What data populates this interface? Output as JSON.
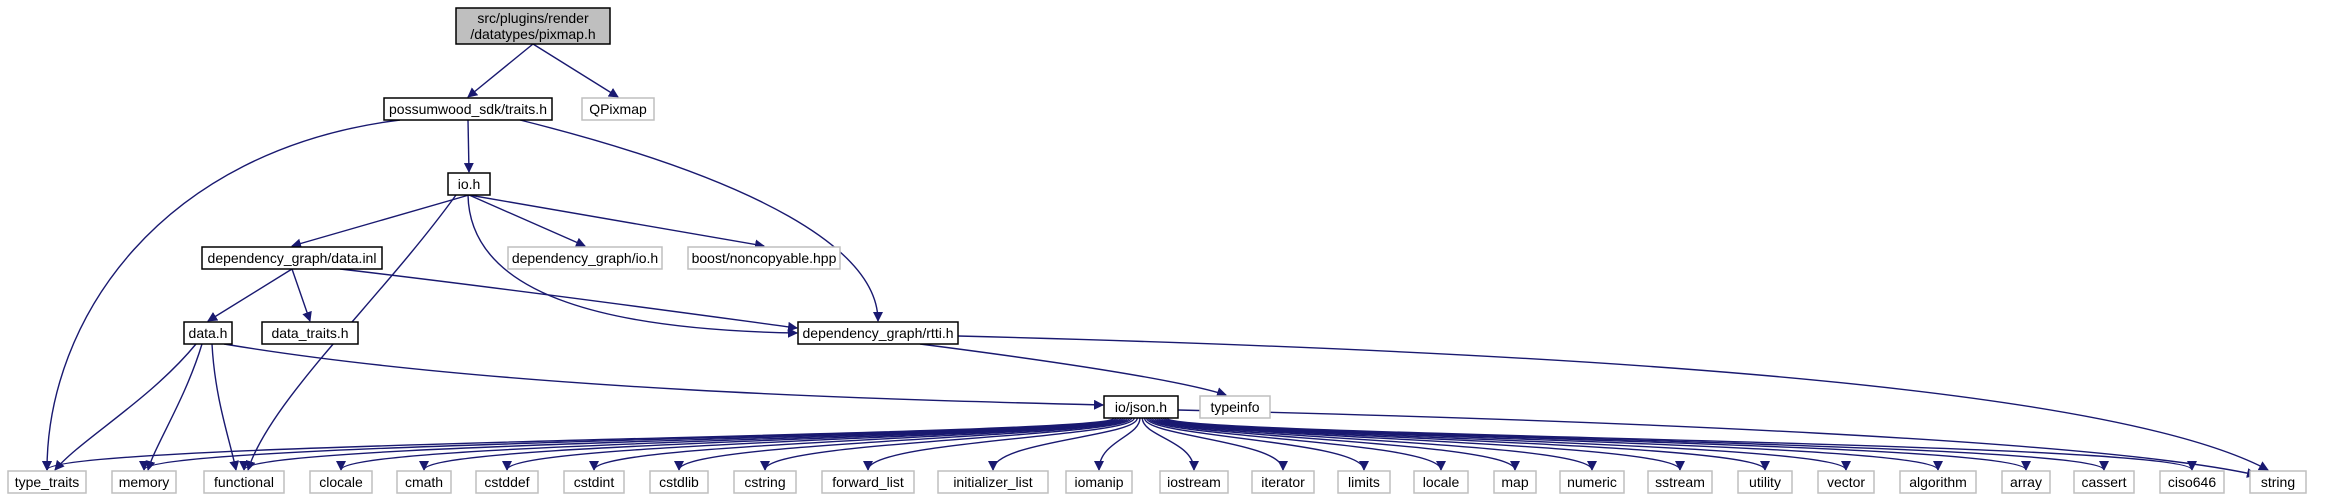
{
  "colors": {
    "edge": "#191970",
    "node_border_documented": "#000000",
    "node_border_external": "#bfbfbf",
    "node_fill_current": "#bfbfbf",
    "node_fill": "#ffffff"
  },
  "nodes": [
    {
      "id": "pixmap",
      "lines": [
        "src/plugins/render",
        "/datatypes/pixmap.h"
      ],
      "kind": "current"
    },
    {
      "id": "traits",
      "lines": [
        "possumwood_sdk/traits.h"
      ],
      "kind": "documented"
    },
    {
      "id": "qpixmap",
      "lines": [
        "QPixmap"
      ],
      "kind": "external"
    },
    {
      "id": "io",
      "lines": [
        "io.h"
      ],
      "kind": "documented"
    },
    {
      "id": "data_inl",
      "lines": [
        "dependency_graph/data.inl"
      ],
      "kind": "documented"
    },
    {
      "id": "dg_io",
      "lines": [
        "dependency_graph/io.h"
      ],
      "kind": "external"
    },
    {
      "id": "noncopyable",
      "lines": [
        "boost/noncopyable.hpp"
      ],
      "kind": "external"
    },
    {
      "id": "data_h",
      "lines": [
        "data.h"
      ],
      "kind": "documented"
    },
    {
      "id": "data_traits",
      "lines": [
        "data_traits.h"
      ],
      "kind": "documented"
    },
    {
      "id": "rtti",
      "lines": [
        "dependency_graph/rtti.h"
      ],
      "kind": "documented"
    },
    {
      "id": "json",
      "lines": [
        "io/json.h"
      ],
      "kind": "documented"
    },
    {
      "id": "typeinfo",
      "lines": [
        "typeinfo"
      ],
      "kind": "external"
    },
    {
      "id": "type_traits",
      "lines": [
        "type_traits"
      ],
      "kind": "external"
    },
    {
      "id": "memory",
      "lines": [
        "memory"
      ],
      "kind": "external"
    },
    {
      "id": "functional",
      "lines": [
        "functional"
      ],
      "kind": "external"
    },
    {
      "id": "clocale",
      "lines": [
        "clocale"
      ],
      "kind": "external"
    },
    {
      "id": "cmath",
      "lines": [
        "cmath"
      ],
      "kind": "external"
    },
    {
      "id": "cstddef",
      "lines": [
        "cstddef"
      ],
      "kind": "external"
    },
    {
      "id": "cstdint",
      "lines": [
        "cstdint"
      ],
      "kind": "external"
    },
    {
      "id": "cstdlib",
      "lines": [
        "cstdlib"
      ],
      "kind": "external"
    },
    {
      "id": "cstring",
      "lines": [
        "cstring"
      ],
      "kind": "external"
    },
    {
      "id": "forward_list",
      "lines": [
        "forward_list"
      ],
      "kind": "external"
    },
    {
      "id": "initializer_list",
      "lines": [
        "initializer_list"
      ],
      "kind": "external"
    },
    {
      "id": "iomanip",
      "lines": [
        "iomanip"
      ],
      "kind": "external"
    },
    {
      "id": "iostream",
      "lines": [
        "iostream"
      ],
      "kind": "external"
    },
    {
      "id": "iterator",
      "lines": [
        "iterator"
      ],
      "kind": "external"
    },
    {
      "id": "limits",
      "lines": [
        "limits"
      ],
      "kind": "external"
    },
    {
      "id": "locale",
      "lines": [
        "locale"
      ],
      "kind": "external"
    },
    {
      "id": "map",
      "lines": [
        "map"
      ],
      "kind": "external"
    },
    {
      "id": "numeric",
      "lines": [
        "numeric"
      ],
      "kind": "external"
    },
    {
      "id": "sstream",
      "lines": [
        "sstream"
      ],
      "kind": "external"
    },
    {
      "id": "utility",
      "lines": [
        "utility"
      ],
      "kind": "external"
    },
    {
      "id": "vector",
      "lines": [
        "vector"
      ],
      "kind": "external"
    },
    {
      "id": "algorithm",
      "lines": [
        "algorithm"
      ],
      "kind": "external"
    },
    {
      "id": "array",
      "lines": [
        "array"
      ],
      "kind": "external"
    },
    {
      "id": "cassert",
      "lines": [
        "cassert"
      ],
      "kind": "external"
    },
    {
      "id": "ciso646",
      "lines": [
        "ciso646"
      ],
      "kind": "external"
    },
    {
      "id": "string",
      "lines": [
        "string"
      ],
      "kind": "external"
    }
  ],
  "edges": [
    [
      "pixmap",
      "traits"
    ],
    [
      "pixmap",
      "qpixmap"
    ],
    [
      "traits",
      "io"
    ],
    [
      "traits",
      "rtti"
    ],
    [
      "traits",
      "type_traits"
    ],
    [
      "io",
      "data_inl"
    ],
    [
      "io",
      "dg_io"
    ],
    [
      "io",
      "noncopyable"
    ],
    [
      "io",
      "rtti"
    ],
    [
      "io",
      "functional"
    ],
    [
      "data_inl",
      "data_h"
    ],
    [
      "data_inl",
      "data_traits"
    ],
    [
      "data_inl",
      "rtti"
    ],
    [
      "data_h",
      "json"
    ],
    [
      "data_h",
      "type_traits"
    ],
    [
      "data_h",
      "memory"
    ],
    [
      "data_h",
      "functional"
    ],
    [
      "rtti",
      "typeinfo"
    ],
    [
      "rtti",
      "string"
    ],
    [
      "json",
      "type_traits"
    ],
    [
      "json",
      "memory"
    ],
    [
      "json",
      "functional"
    ],
    [
      "json",
      "clocale"
    ],
    [
      "json",
      "cmath"
    ],
    [
      "json",
      "cstddef"
    ],
    [
      "json",
      "cstdint"
    ],
    [
      "json",
      "cstdlib"
    ],
    [
      "json",
      "cstring"
    ],
    [
      "json",
      "forward_list"
    ],
    [
      "json",
      "initializer_list"
    ],
    [
      "json",
      "iomanip"
    ],
    [
      "json",
      "iostream"
    ],
    [
      "json",
      "iterator"
    ],
    [
      "json",
      "limits"
    ],
    [
      "json",
      "locale"
    ],
    [
      "json",
      "map"
    ],
    [
      "json",
      "numeric"
    ],
    [
      "json",
      "sstream"
    ],
    [
      "json",
      "utility"
    ],
    [
      "json",
      "vector"
    ],
    [
      "json",
      "algorithm"
    ],
    [
      "json",
      "array"
    ],
    [
      "json",
      "cassert"
    ],
    [
      "json",
      "ciso646"
    ],
    [
      "json",
      "string"
    ]
  ]
}
